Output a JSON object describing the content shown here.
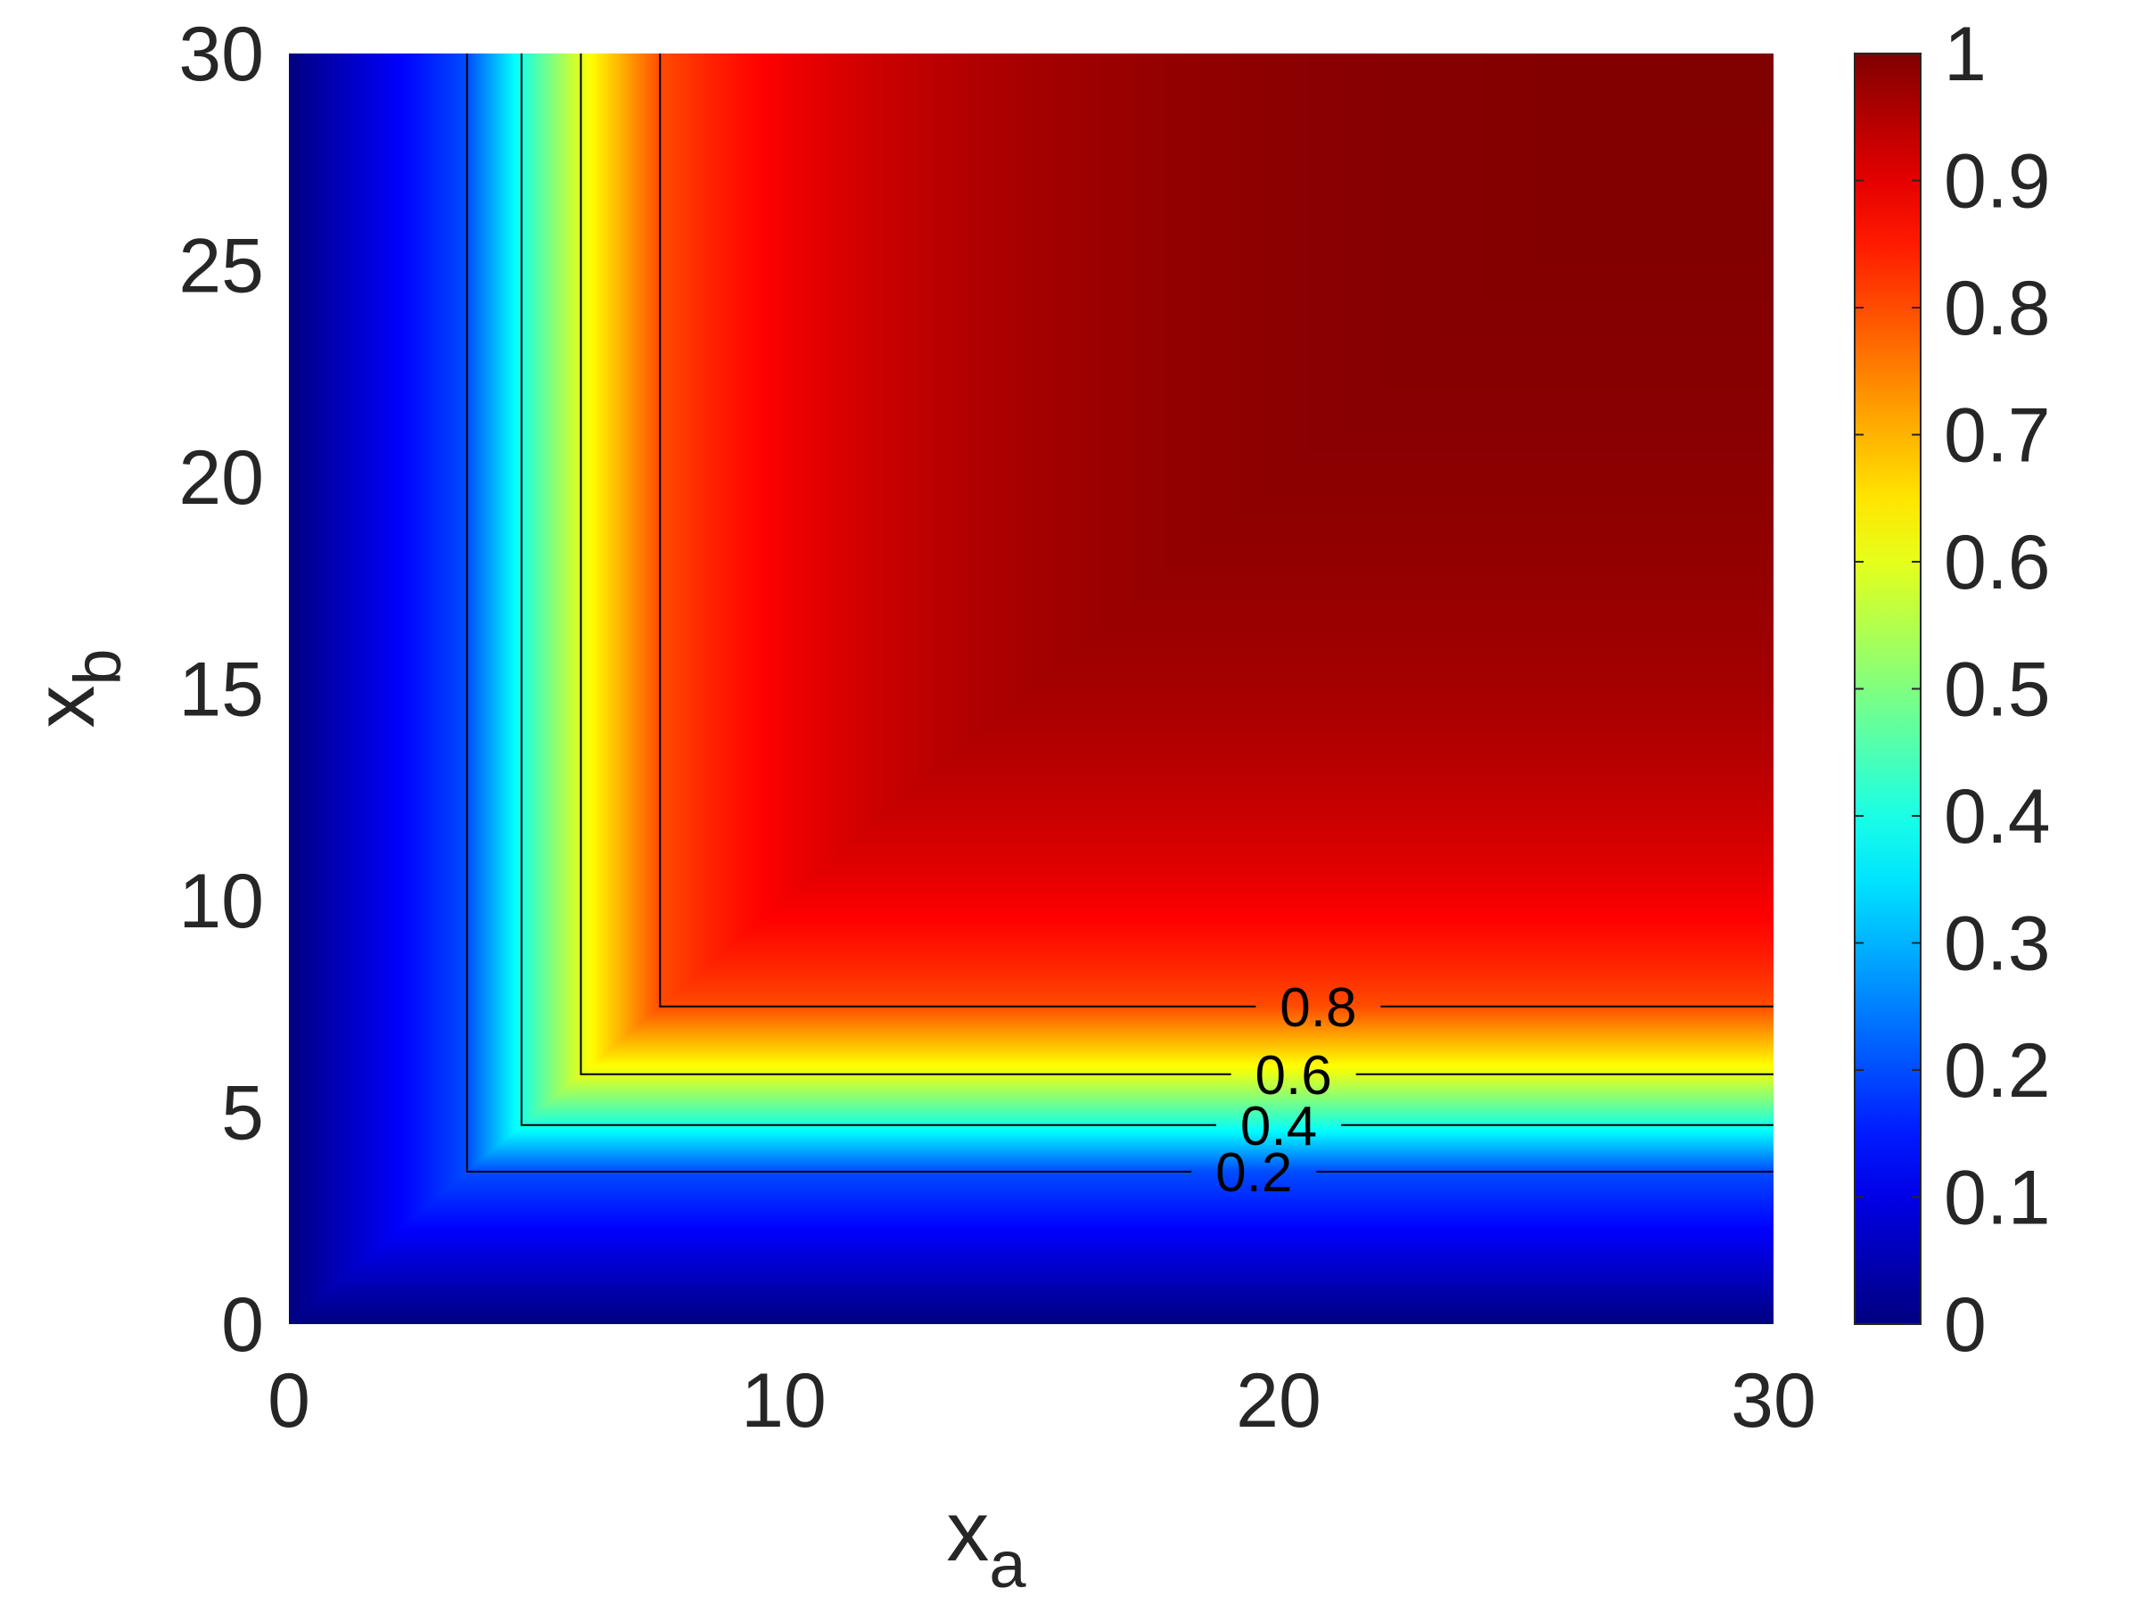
{
  "chart_data": {
    "type": "heatmap",
    "title": "",
    "xlabel": "x",
    "xlabel_subscript": "a",
    "ylabel": "x",
    "ylabel_subscript": "b",
    "xlim": [
      0,
      30
    ],
    "ylim": [
      0,
      30
    ],
    "x_ticks": [
      0,
      10,
      20,
      30
    ],
    "x_tick_labels": [
      "0",
      "10",
      "20",
      "30"
    ],
    "y_ticks": [
      0,
      5,
      10,
      15,
      20,
      25,
      30
    ],
    "y_tick_labels": [
      "0",
      "5",
      "10",
      "15",
      "20",
      "25",
      "30"
    ],
    "colormap": "jet",
    "colorbar": {
      "lim": [
        0,
        1
      ],
      "ticks": [
        0,
        0.1,
        0.2,
        0.3,
        0.4,
        0.5,
        0.6,
        0.7,
        0.8,
        0.9,
        1
      ],
      "tick_labels": [
        "0",
        "0.1",
        "0.2",
        "0.3",
        "0.4",
        "0.5",
        "0.6",
        "0.7",
        "0.8",
        "0.9",
        "1"
      ],
      "placement": "right"
    },
    "field": "value rises from 0 near the axes to about 1 for large x_a and x_b; contours are L-shaped (governed by the smaller of x_a and x_b)",
    "contours": [
      {
        "level": 0.2,
        "label": "0.2",
        "corner": 3.6,
        "label_x": 19.5
      },
      {
        "level": 0.4,
        "label": "0.4",
        "corner": 4.7,
        "label_x": 20.0
      },
      {
        "level": 0.6,
        "label": "0.6",
        "corner": 5.9,
        "label_x": 20.3
      },
      {
        "level": 0.8,
        "label": "0.8",
        "corner": 7.5,
        "label_x": 20.8
      }
    ],
    "grid": false
  }
}
